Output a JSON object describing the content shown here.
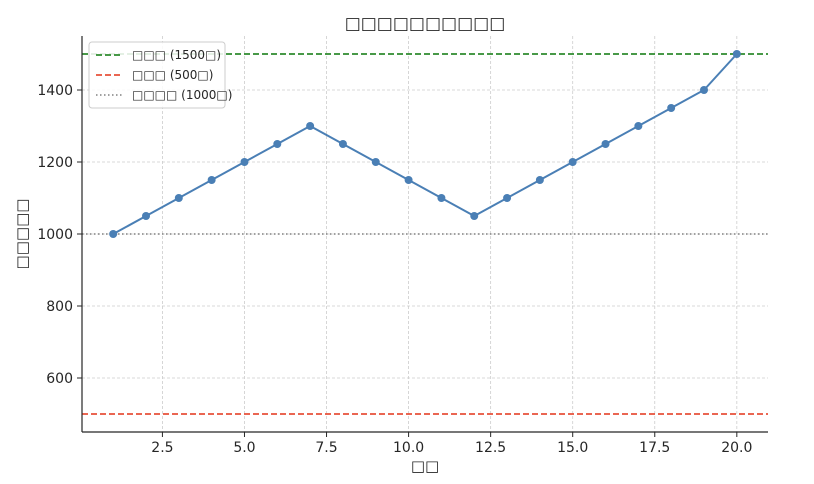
{
  "chart_data": {
    "type": "line",
    "title": "□□□□□□□□□□",
    "xlabel": "□□",
    "ylabel": "□□□□□",
    "xlim": [
      0.05,
      20.95
    ],
    "ylim": [
      450,
      1550
    ],
    "xticks": [
      2.5,
      5.0,
      7.5,
      10.0,
      12.5,
      15.0,
      17.5,
      20.0
    ],
    "xtick_labels": [
      "2.5",
      "5.0",
      "7.5",
      "10.0",
      "12.5",
      "15.0",
      "17.5",
      "20.0"
    ],
    "yticks": [
      600,
      800,
      1000,
      1200,
      1400
    ],
    "ytick_labels": [
      "600",
      "800",
      "1000",
      "1200",
      "1400"
    ],
    "grid": true,
    "legend_position": "top-left",
    "series": [
      {
        "color": "#4a7fb5",
        "x": [
          1,
          2,
          3,
          4,
          5,
          6,
          7,
          8,
          9,
          10,
          11,
          12,
          13,
          14,
          15,
          16,
          17,
          18,
          19,
          20
        ],
        "y": [
          1000,
          1050,
          1100,
          1150,
          1200,
          1250,
          1300,
          1250,
          1200,
          1150,
          1100,
          1050,
          1100,
          1150,
          1200,
          1250,
          1300,
          1350,
          1400,
          1500
        ]
      }
    ],
    "reference_lines": [
      {
        "name": "□□□ (1500□)",
        "value": 1500,
        "color": "#2e8b2e",
        "style": "dashed"
      },
      {
        "name": "□□□ (500□)",
        "value": 500,
        "color": "#e8503a",
        "style": "dashed"
      },
      {
        "name": "□□□□ (1000□)",
        "value": 1000,
        "color": "#808080",
        "style": "dotted"
      }
    ]
  }
}
